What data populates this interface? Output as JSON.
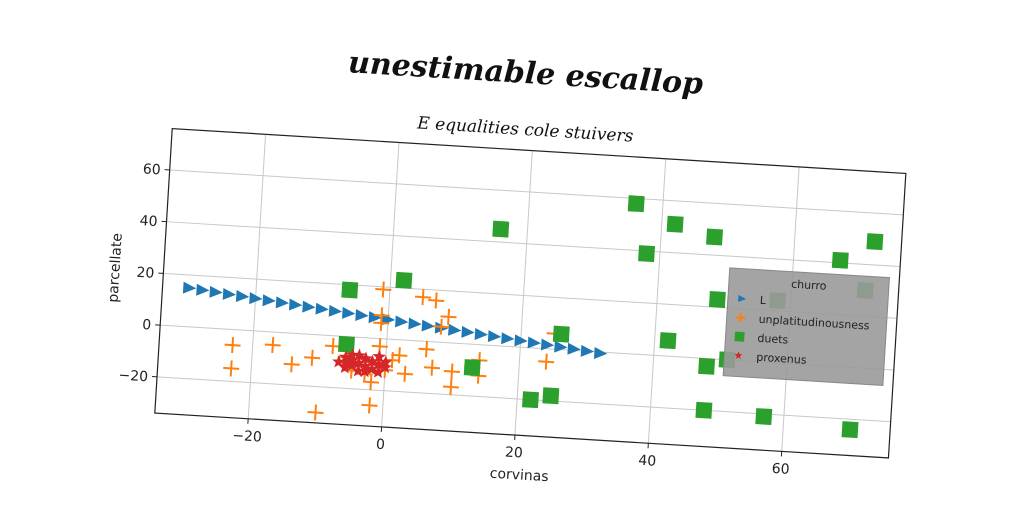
{
  "chart_data": {
    "type": "scatter",
    "title": "unestimable escallop",
    "subtitle": "E equalities cole stuivers",
    "xlabel": "corvinas",
    "ylabel": "parcellate",
    "xlim": [
      -34,
      76
    ],
    "ylim": [
      -34,
      76
    ],
    "xticks": [
      -20,
      0,
      20,
      40,
      60
    ],
    "yticks": [
      -20,
      0,
      20,
      40,
      60
    ],
    "grid": true,
    "legend": {
      "title": "churro",
      "placement": "right"
    },
    "series": [
      {
        "name": "L",
        "marker": "triangle-right",
        "color": "#1f77b4",
        "points": [
          [
            -30,
            15
          ],
          [
            -28,
            14.5
          ],
          [
            -26,
            14
          ],
          [
            -24,
            13.5
          ],
          [
            -22,
            13
          ],
          [
            -20,
            12.5
          ],
          [
            -18,
            12
          ],
          [
            -16,
            11.5
          ],
          [
            -14,
            11
          ],
          [
            -12,
            10.5
          ],
          [
            -10,
            10
          ],
          [
            -8,
            9.5
          ],
          [
            -6,
            9
          ],
          [
            -4,
            8.5
          ],
          [
            -2,
            8
          ],
          [
            0,
            7.5
          ],
          [
            2,
            7
          ],
          [
            4,
            6.5
          ],
          [
            6,
            6
          ],
          [
            8,
            5.5
          ],
          [
            10,
            5
          ],
          [
            12,
            4.5
          ],
          [
            14,
            4
          ],
          [
            16,
            3.5
          ],
          [
            18,
            3
          ],
          [
            20,
            2.5
          ],
          [
            22,
            2
          ],
          [
            24,
            1.5
          ],
          [
            26,
            1
          ],
          [
            28,
            0.5
          ],
          [
            30,
            0
          ],
          [
            32,
            -0.5
          ]
        ]
      },
      {
        "name": "unplatitudinousness",
        "marker": "plus",
        "color": "#ff7f0e",
        "points": [
          [
            -23,
            -6
          ],
          [
            -23,
            -15
          ],
          [
            -17,
            -5
          ],
          [
            -14,
            -12
          ],
          [
            -11,
            -9
          ],
          [
            -10,
            -30
          ],
          [
            -8,
            -4
          ],
          [
            -6,
            -8
          ],
          [
            -5,
            -13
          ],
          [
            -3,
            -14
          ],
          [
            -2,
            -17
          ],
          [
            -2,
            -26
          ],
          [
            -1,
            6
          ],
          [
            -1,
            -3
          ],
          [
            -1,
            9
          ],
          [
            -1,
            19
          ],
          [
            0,
            -12
          ],
          [
            1,
            -8
          ],
          [
            2,
            -6
          ],
          [
            3,
            -13
          ],
          [
            5,
            17
          ],
          [
            6,
            -3
          ],
          [
            7,
            16
          ],
          [
            7,
            -10
          ],
          [
            8,
            6
          ],
          [
            9,
            10
          ],
          [
            10,
            -11
          ],
          [
            10,
            -17
          ],
          [
            13,
            -9
          ],
          [
            14,
            -12
          ],
          [
            14,
            -6
          ],
          [
            24,
            -5
          ],
          [
            25,
            6
          ]
        ]
      },
      {
        "name": "duets",
        "marker": "square",
        "color": "#2ca02c",
        "points": [
          [
            -6,
            18
          ],
          [
            -6,
            -3
          ],
          [
            2,
            23
          ],
          [
            13,
            -9
          ],
          [
            16,
            45
          ],
          [
            22,
            -20
          ],
          [
            25,
            -18
          ],
          [
            26,
            6
          ],
          [
            36,
            58
          ],
          [
            38,
            39
          ],
          [
            42,
            51
          ],
          [
            42,
            6
          ],
          [
            48,
            47
          ],
          [
            49,
            23
          ],
          [
            48,
            -3
          ],
          [
            48,
            -20
          ],
          [
            51,
            0
          ],
          [
            57,
            -21
          ],
          [
            58,
            24
          ],
          [
            67,
            41
          ],
          [
            72,
            49
          ],
          [
            71,
            30
          ],
          [
            70,
            -24
          ]
        ]
      },
      {
        "name": "proxenus",
        "marker": "star",
        "color": "#d62728",
        "points": [
          [
            -7,
            -10
          ],
          [
            -6,
            -8
          ],
          [
            -6,
            -12
          ],
          [
            -5,
            -9
          ],
          [
            -5,
            -11
          ],
          [
            -4,
            -7
          ],
          [
            -4,
            -10
          ],
          [
            -4,
            -13
          ],
          [
            -3,
            -8
          ],
          [
            -3,
            -11
          ],
          [
            -2,
            -9
          ],
          [
            -2,
            -12
          ],
          [
            -1,
            -10
          ],
          [
            -1,
            -7
          ],
          [
            0,
            -11
          ],
          [
            0,
            -9
          ],
          [
            -6,
            -10
          ],
          [
            -3,
            -13
          ],
          [
            -5,
            -7
          ],
          [
            -1,
            -13
          ]
        ]
      }
    ]
  }
}
